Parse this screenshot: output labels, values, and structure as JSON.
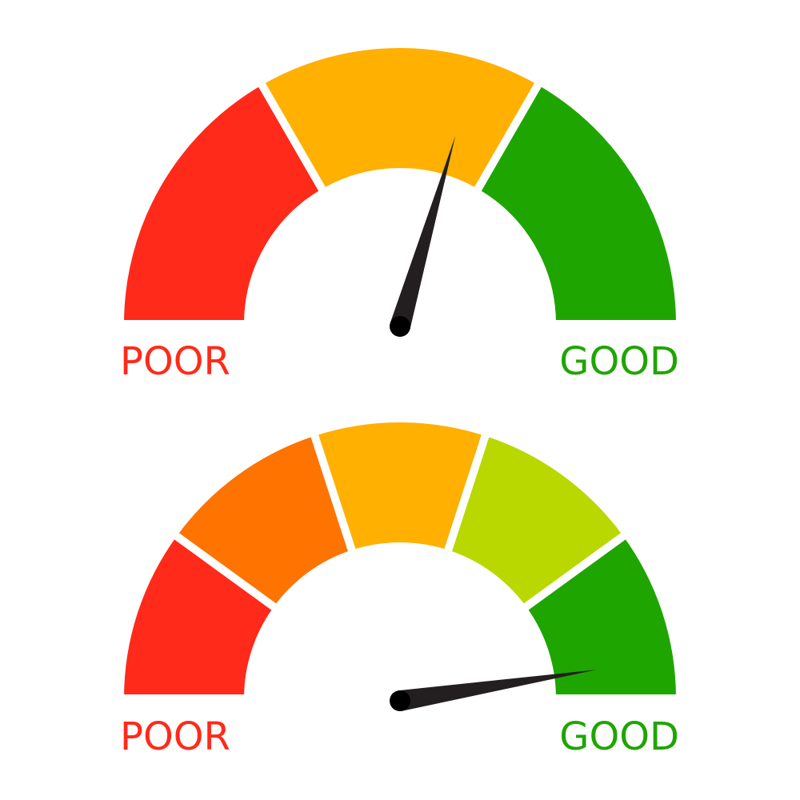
{
  "gauges": [
    {
      "segments": [
        "#FF2A1A",
        "#FFB000",
        "#1FA500"
      ],
      "value_percent": 59,
      "poor_label": "POOR",
      "good_label": "GOOD",
      "poor_color": "#FF2A1A",
      "good_color": "#1FA500",
      "needle_color": "#231F20"
    },
    {
      "segments": [
        "#FF2A1A",
        "#FF7300",
        "#FFB000",
        "#B9D800",
        "#1FA500"
      ],
      "value_percent": 95,
      "poor_label": "POOR",
      "good_label": "GOOD",
      "poor_color": "#FF2A1A",
      "good_color": "#1FA500",
      "needle_color": "#231F20"
    }
  ]
}
